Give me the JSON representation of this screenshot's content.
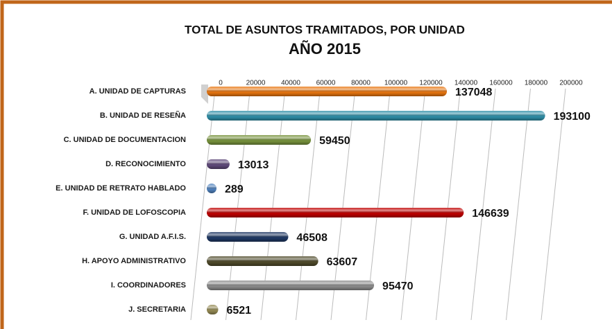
{
  "chart_data": {
    "type": "bar",
    "orientation": "horizontal",
    "title": "TOTAL DE ASUNTOS TRAMITADOS, POR UNIDAD",
    "subtitle": "AÑO 2015",
    "categories": [
      "A. UNIDAD DE CAPTURAS",
      "B. UNIDAD DE RESEÑA",
      "C. UNIDAD DE DOCUMENTACION",
      "D. RECONOCIMIENTO",
      "E. UNIDAD DE RETRATO HABLADO",
      "F. UNIDAD DE LOFOSCOPIA",
      "G. UNIDAD A.F.I.S.",
      "H. APOYO ADMINISTRATIVO",
      "I. COORDINADORES",
      "J. SECRETARIA"
    ],
    "values": [
      137048,
      193100,
      59450,
      13013,
      289,
      146639,
      46508,
      63607,
      95470,
      6521
    ],
    "colors": [
      "#e8750f",
      "#2f8fa8",
      "#77933c",
      "#5f497a",
      "#4f81bd",
      "#c00000",
      "#1f3864",
      "#4f4a2a",
      "#8c8c8c",
      "#948a54"
    ],
    "xlim": [
      0,
      200000
    ],
    "xticks": [
      0,
      20000,
      40000,
      60000,
      80000,
      100000,
      120000,
      140000,
      160000,
      180000,
      200000
    ],
    "grid": true
  }
}
